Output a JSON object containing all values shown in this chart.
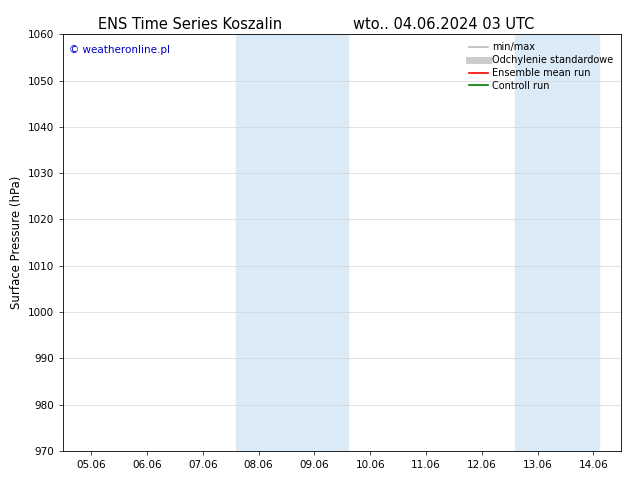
{
  "title_left": "ENS Time Series Koszalin",
  "title_right": "wto.. 04.06.2024 03 UTC",
  "ylabel": "Surface Pressure (hPa)",
  "ylim": [
    970,
    1060
  ],
  "yticks": [
    970,
    980,
    990,
    1000,
    1010,
    1020,
    1030,
    1040,
    1050,
    1060
  ],
  "xtick_labels": [
    "05.06",
    "06.06",
    "07.06",
    "08.06",
    "09.06",
    "10.06",
    "11.06",
    "12.06",
    "13.06",
    "14.06"
  ],
  "xtick_positions": [
    0,
    1,
    2,
    3,
    4,
    5,
    6,
    7,
    8,
    9
  ],
  "xlim": [
    -0.5,
    9.5
  ],
  "shaded_regions": [
    {
      "x_start": 2.6,
      "x_end": 4.6,
      "color": "#daeaf7"
    },
    {
      "x_start": 7.6,
      "x_end": 9.1,
      "color": "#daeaf7"
    }
  ],
  "watermark": "© weatheronline.pl",
  "watermark_color": "#0000cc",
  "background_color": "#ffffff",
  "legend_entries": [
    {
      "label": "min/max",
      "color": "#bbbbbb",
      "lw": 1.2
    },
    {
      "label": "Odchylenie standardowe",
      "color": "#cccccc",
      "lw": 5
    },
    {
      "label": "Ensemble mean run",
      "color": "#ff0000",
      "lw": 1.2
    },
    {
      "label": "Controll run",
      "color": "#008000",
      "lw": 1.2
    }
  ],
  "title_fontsize": 10.5,
  "axis_label_fontsize": 8.5,
  "tick_fontsize": 7.5,
  "watermark_fontsize": 7.5,
  "legend_fontsize": 7.0
}
